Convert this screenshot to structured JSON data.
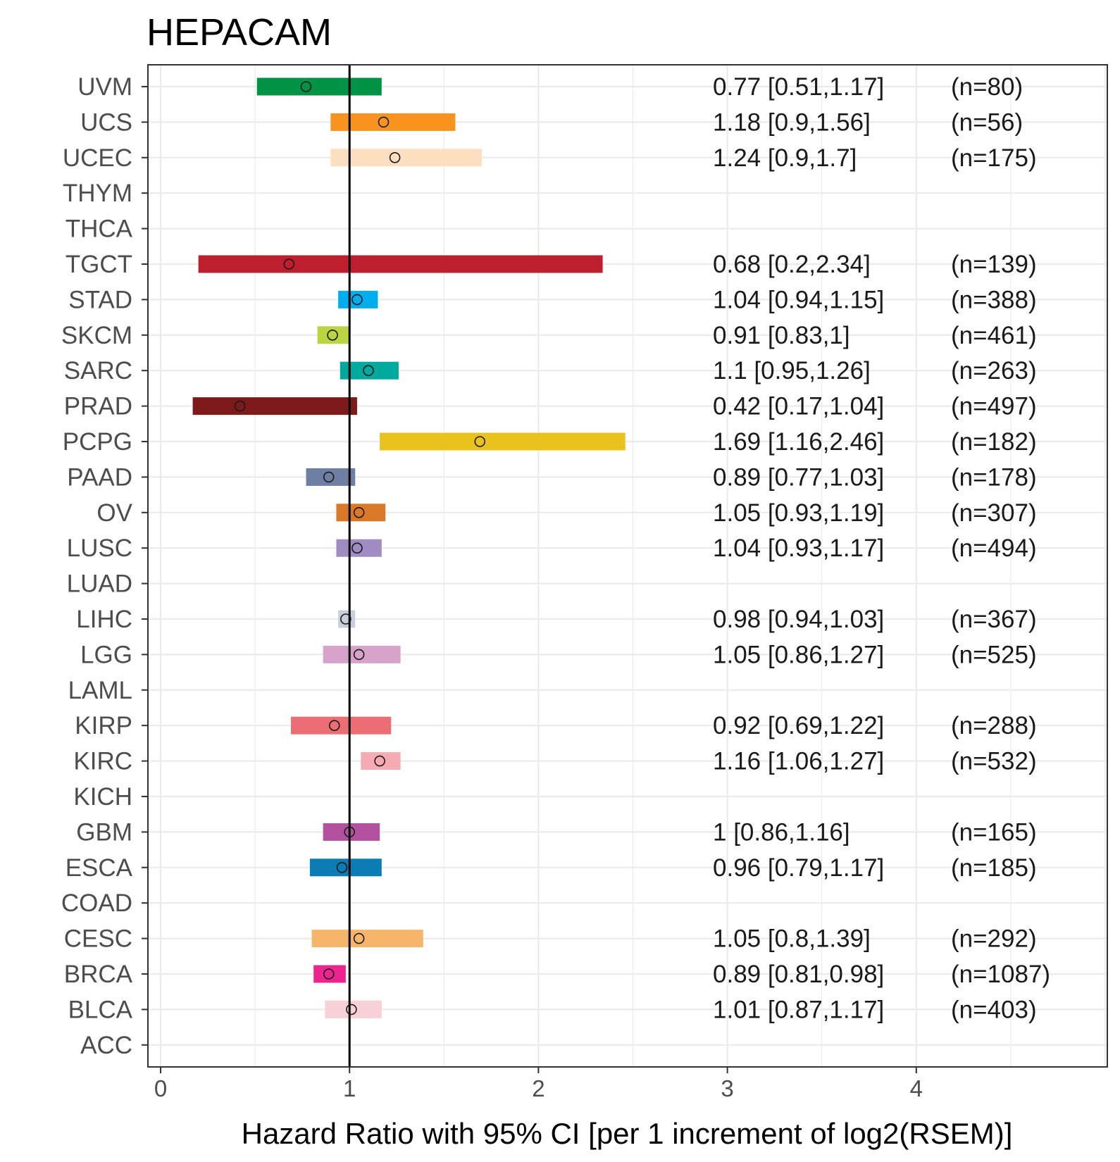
{
  "chart_data": {
    "type": "forest",
    "title": "HEPACAM",
    "xlabel": "Hazard Ratio with 95% CI [per 1 increment of log2(RSEM)]",
    "ylabel": "",
    "xlim": [
      -0.08,
      5.0
    ],
    "xticks": [
      0,
      1,
      2,
      3,
      4
    ],
    "reference_line": 1,
    "grid": true,
    "rows": [
      {
        "label": "UVM",
        "hr": 0.77,
        "lo": 0.51,
        "hi": 1.17,
        "text": "0.77 [0.51,1.17]",
        "n": "(n=80)",
        "color": "#009245"
      },
      {
        "label": "UCS",
        "hr": 1.18,
        "lo": 0.9,
        "hi": 1.56,
        "text": "1.18 [0.9,1.56]",
        "n": "(n=56)",
        "color": "#F7931E"
      },
      {
        "label": "UCEC",
        "hr": 1.24,
        "lo": 0.9,
        "hi": 1.7,
        "text": "1.24 [0.9,1.7]",
        "n": "(n=175)",
        "color": "#FCDFC1"
      },
      {
        "label": "THYM",
        "hr": null,
        "lo": null,
        "hi": null,
        "text": "",
        "n": "",
        "color": "#cccccc"
      },
      {
        "label": "THCA",
        "hr": null,
        "lo": null,
        "hi": null,
        "text": "",
        "n": "",
        "color": "#cccccc"
      },
      {
        "label": "TGCT",
        "hr": 0.68,
        "lo": 0.2,
        "hi": 2.34,
        "text": "0.68 [0.2,2.34]",
        "n": "(n=139)",
        "color": "#BE1E2D"
      },
      {
        "label": "STAD",
        "hr": 1.04,
        "lo": 0.94,
        "hi": 1.15,
        "text": "1.04 [0.94,1.15]",
        "n": "(n=388)",
        "color": "#00AEEF"
      },
      {
        "label": "SKCM",
        "hr": 0.91,
        "lo": 0.83,
        "hi": 1,
        "text": "0.91 [0.83,1]",
        "n": "(n=461)",
        "color": "#BBD441"
      },
      {
        "label": "SARC",
        "hr": 1.1,
        "lo": 0.95,
        "hi": 1.26,
        "text": "1.1 [0.95,1.26]",
        "n": "(n=263)",
        "color": "#00A99D"
      },
      {
        "label": "PRAD",
        "hr": 0.42,
        "lo": 0.17,
        "hi": 1.04,
        "text": "0.42 [0.17,1.04]",
        "n": "(n=497)",
        "color": "#7E1A1A"
      },
      {
        "label": "PCPG",
        "hr": 1.69,
        "lo": 1.16,
        "hi": 2.46,
        "text": "1.69 [1.16,2.46]",
        "n": "(n=182)",
        "color": "#E9C21E"
      },
      {
        "label": "PAAD",
        "hr": 0.89,
        "lo": 0.77,
        "hi": 1.03,
        "text": "0.89 [0.77,1.03]",
        "n": "(n=178)",
        "color": "#6E7FA3"
      },
      {
        "label": "OV",
        "hr": 1.05,
        "lo": 0.93,
        "hi": 1.19,
        "text": "1.05 [0.93,1.19]",
        "n": "(n=307)",
        "color": "#D97826"
      },
      {
        "label": "LUSC",
        "hr": 1.04,
        "lo": 0.93,
        "hi": 1.17,
        "text": "1.04 [0.93,1.17]",
        "n": "(n=494)",
        "color": "#A08BC2"
      },
      {
        "label": "LUAD",
        "hr": null,
        "lo": null,
        "hi": null,
        "text": "",
        "n": "",
        "color": "#cccccc"
      },
      {
        "label": "LIHC",
        "hr": 0.98,
        "lo": 0.94,
        "hi": 1.03,
        "text": "0.98 [0.94,1.03]",
        "n": "(n=367)",
        "color": "#CACEDC"
      },
      {
        "label": "LGG",
        "hr": 1.05,
        "lo": 0.86,
        "hi": 1.27,
        "text": "1.05 [0.86,1.27]",
        "n": "(n=525)",
        "color": "#D8A3CA"
      },
      {
        "label": "LAML",
        "hr": null,
        "lo": null,
        "hi": null,
        "text": "",
        "n": "",
        "color": "#cccccc"
      },
      {
        "label": "KIRP",
        "hr": 0.92,
        "lo": 0.69,
        "hi": 1.22,
        "text": "0.92 [0.69,1.22]",
        "n": "(n=288)",
        "color": "#EC6D73"
      },
      {
        "label": "KIRC",
        "hr": 1.16,
        "lo": 1.06,
        "hi": 1.27,
        "text": "1.16 [1.06,1.27]",
        "n": "(n=532)",
        "color": "#F6AAB1"
      },
      {
        "label": "KICH",
        "hr": null,
        "lo": null,
        "hi": null,
        "text": "",
        "n": "",
        "color": "#cccccc"
      },
      {
        "label": "GBM",
        "hr": 1,
        "lo": 0.86,
        "hi": 1.16,
        "text": "1 [0.86,1.16]",
        "n": "(n=165)",
        "color": "#B4519E"
      },
      {
        "label": "ESCA",
        "hr": 0.96,
        "lo": 0.79,
        "hi": 1.17,
        "text": "0.96 [0.79,1.17]",
        "n": "(n=185)",
        "color": "#0C7CB5"
      },
      {
        "label": "COAD",
        "hr": null,
        "lo": null,
        "hi": null,
        "text": "",
        "n": "",
        "color": "#cccccc"
      },
      {
        "label": "CESC",
        "hr": 1.05,
        "lo": 0.8,
        "hi": 1.39,
        "text": "1.05 [0.8,1.39]",
        "n": "(n=292)",
        "color": "#F5B56A"
      },
      {
        "label": "BRCA",
        "hr": 0.89,
        "lo": 0.81,
        "hi": 0.98,
        "text": "0.89 [0.81,0.98]",
        "n": "(n=1087)",
        "color": "#EC2490"
      },
      {
        "label": "BLCA",
        "hr": 1.01,
        "lo": 0.87,
        "hi": 1.17,
        "text": "1.01 [0.87,1.17]",
        "n": "(n=403)",
        "color": "#F8D0D8"
      },
      {
        "label": "ACC",
        "hr": null,
        "lo": null,
        "hi": null,
        "text": "",
        "n": "",
        "color": "#cccccc"
      }
    ]
  }
}
